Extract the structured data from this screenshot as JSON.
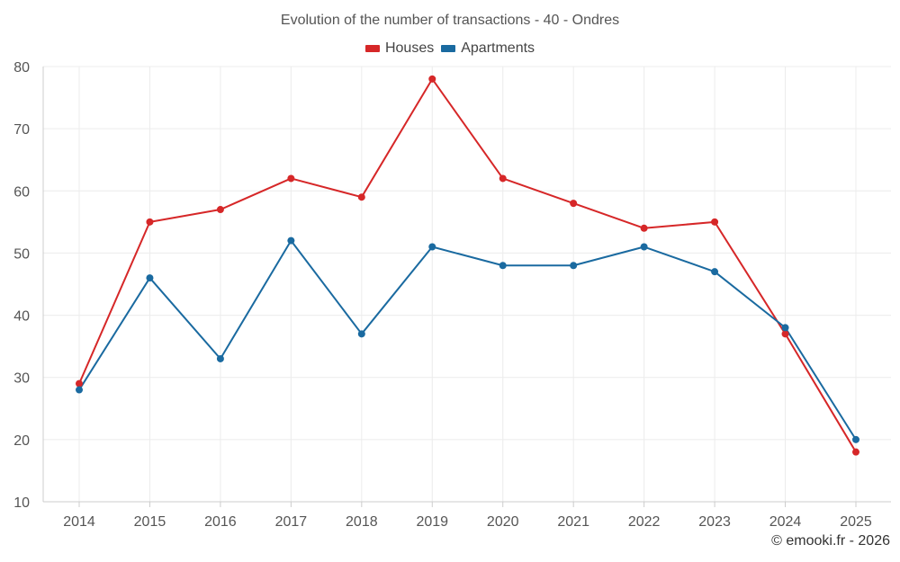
{
  "chart_data": {
    "type": "line",
    "title": "Evolution of the number of transactions - 40 - Ondres",
    "categories": [
      "2014",
      "2015",
      "2016",
      "2017",
      "2018",
      "2019",
      "2020",
      "2021",
      "2022",
      "2023",
      "2024",
      "2025"
    ],
    "series": [
      {
        "name": "Houses",
        "color": "#d62728",
        "values": [
          29,
          55,
          57,
          62,
          59,
          78,
          62,
          58,
          54,
          55,
          37,
          18
        ]
      },
      {
        "name": "Apartments",
        "color": "#1a6aa0",
        "values": [
          28,
          46,
          33,
          52,
          37,
          51,
          48,
          48,
          51,
          47,
          38,
          20
        ]
      }
    ],
    "yticks": [
      10,
      20,
      30,
      40,
      50,
      60,
      70,
      80
    ],
    "ylim": [
      10,
      80
    ],
    "xlabel": "",
    "ylabel": "",
    "grid": true,
    "legend_position": "top-center"
  },
  "credit": "© emooki.fr - 2026"
}
